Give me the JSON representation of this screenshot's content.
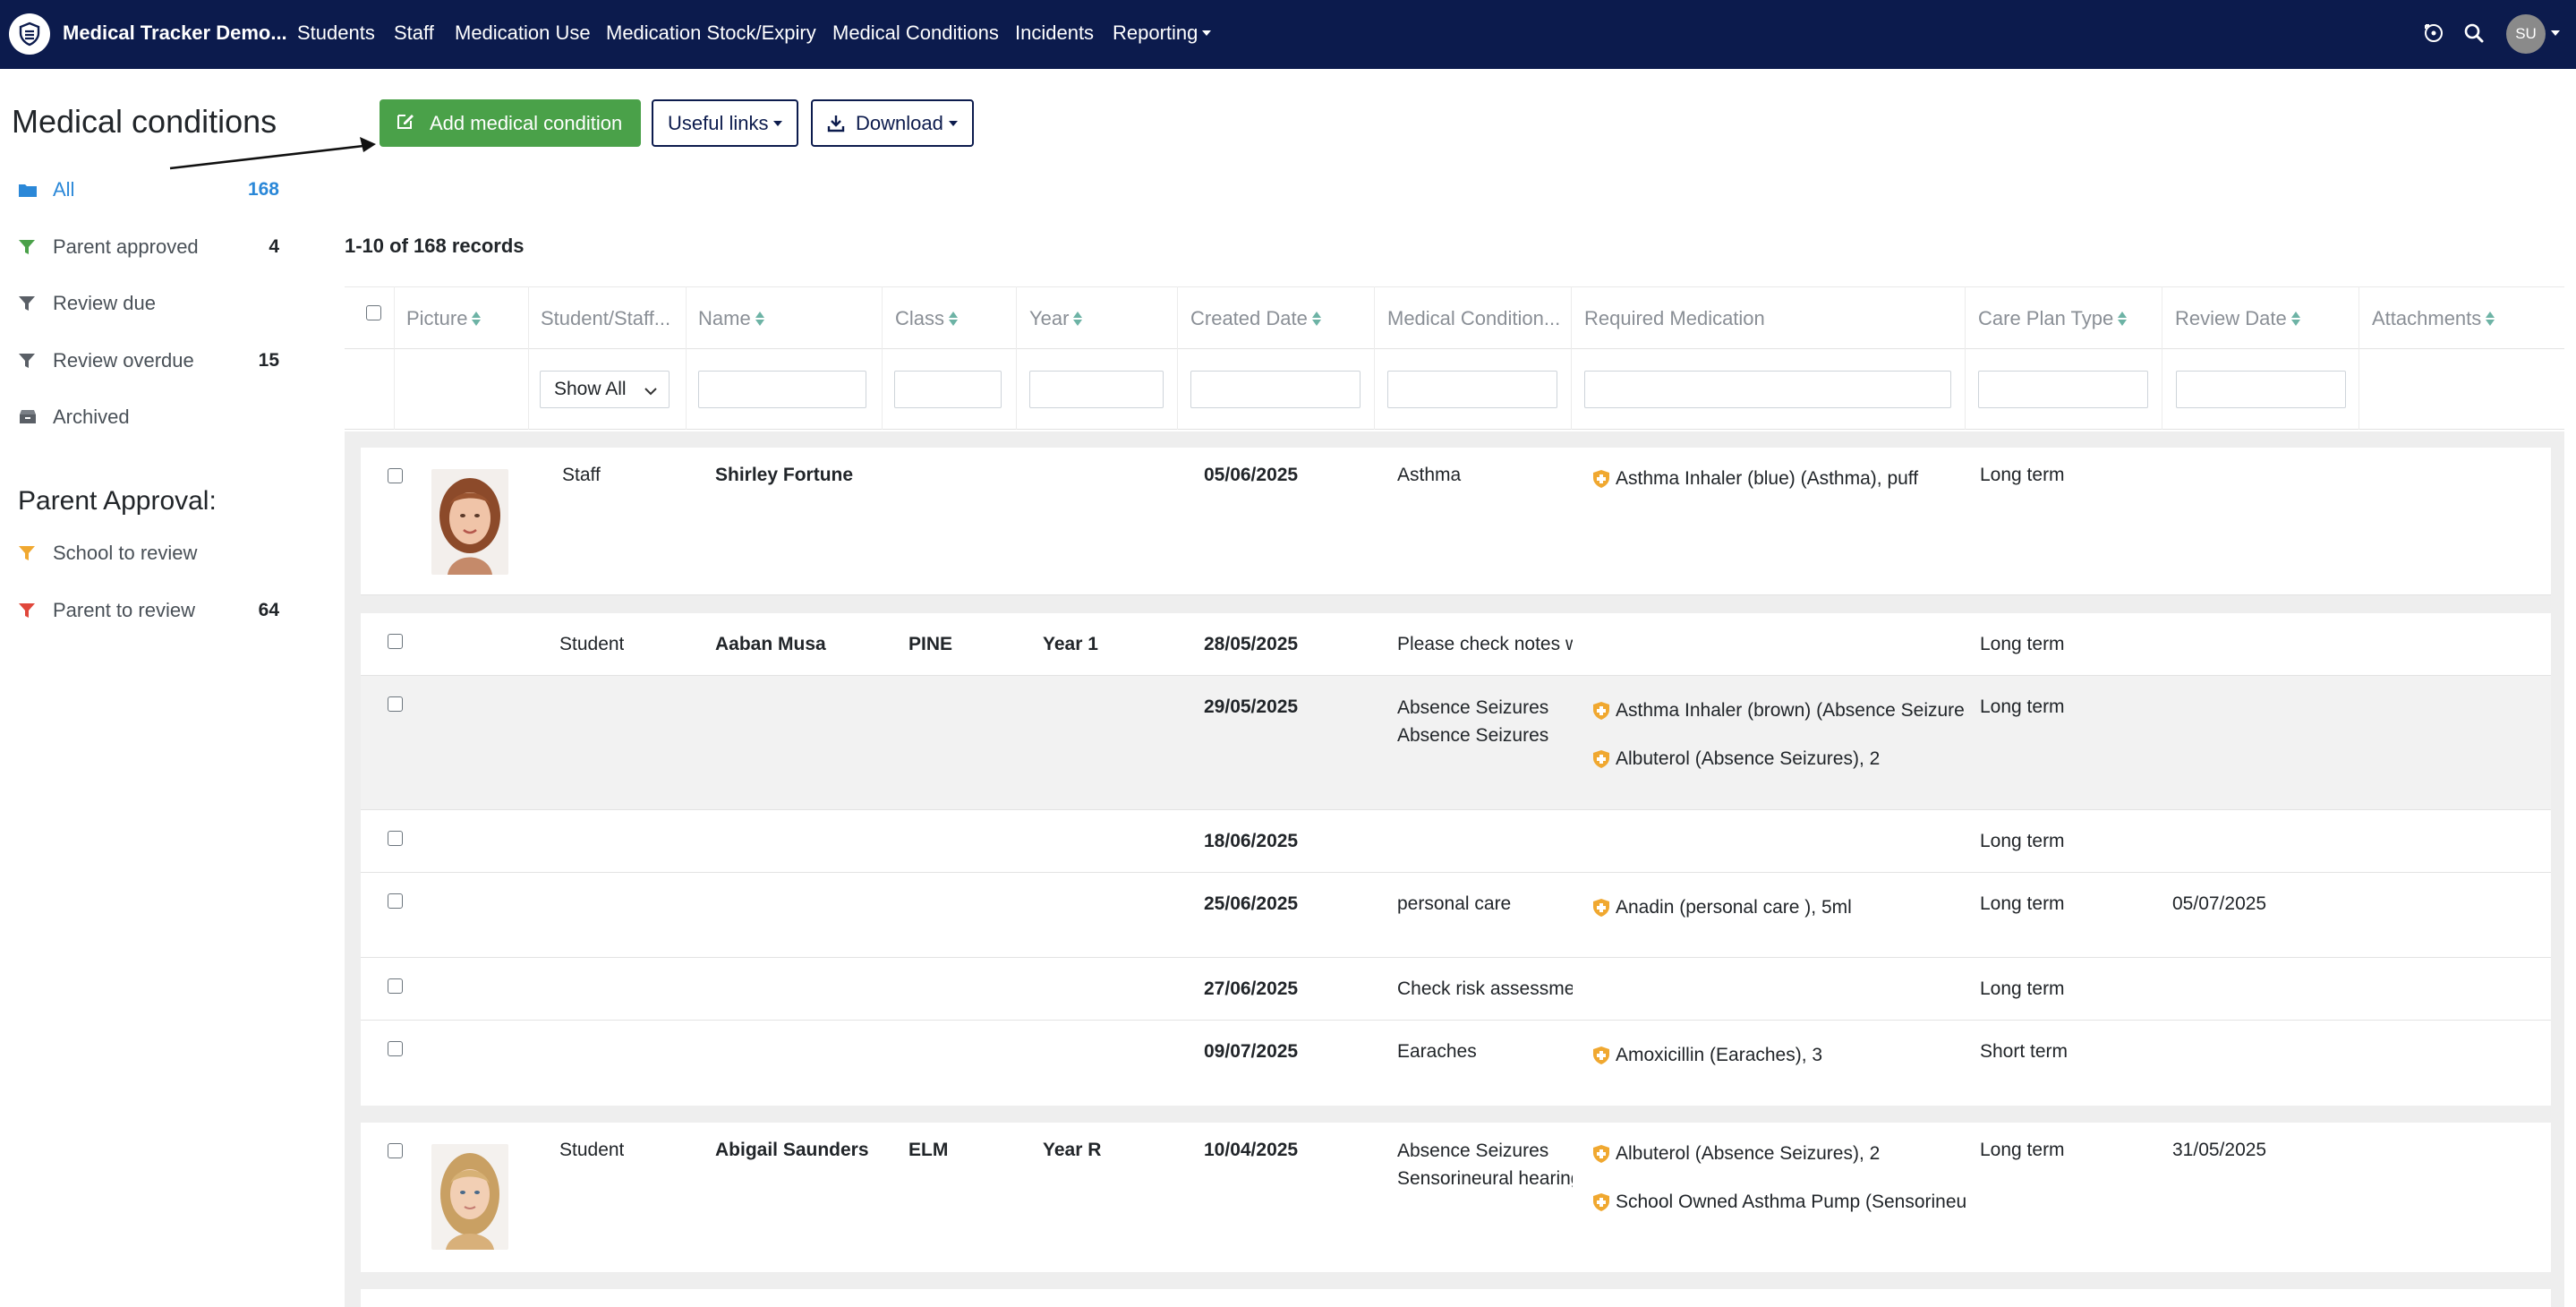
{
  "nav": {
    "brand": "Medical Tracker Demo...",
    "items": [
      "Students",
      "Staff",
      "Medication Use",
      "Medication Stock/Expiry",
      "Medical Conditions",
      "Incidents",
      "Reporting"
    ],
    "avatar_initials": "SU"
  },
  "sidebar": {
    "title": "Medical conditions",
    "filters": [
      {
        "label": "All",
        "count": "168"
      },
      {
        "label": "Parent approved",
        "count": "4"
      },
      {
        "label": "Review due",
        "count": ""
      },
      {
        "label": "Review overdue",
        "count": "15"
      },
      {
        "label": "Archived",
        "count": ""
      }
    ],
    "approval_title": "Parent Approval:",
    "approval_filters": [
      {
        "label": "School to review",
        "count": ""
      },
      {
        "label": "Parent to review",
        "count": "64"
      }
    ]
  },
  "toolbar": {
    "add_label": "Add medical condition",
    "useful_links_label": "Useful links",
    "download_label": "Download"
  },
  "records_text": "1-10 of 168 records",
  "table": {
    "columns": [
      "Picture",
      "Student/Staff...",
      "Name",
      "Class",
      "Year",
      "Created Date",
      "Medical Condition...",
      "Required Medication",
      "Care Plan Type",
      "Review Date",
      "Attachments"
    ],
    "type_filter_value": "Show All",
    "groups": [
      {
        "type": "Staff",
        "name": "Shirley Fortune",
        "class": "",
        "year": "",
        "rows": [
          {
            "created": "05/06/2025",
            "conditions": [
              "Asthma"
            ],
            "medications": [
              "Asthma Inhaler (blue) (Asthma), puff"
            ],
            "care_plan": "Long term",
            "review": ""
          }
        ]
      },
      {
        "type": "Student",
        "name": "Aaban Musa",
        "class": "PINE",
        "year": "Year 1",
        "rows": [
          {
            "created": "28/05/2025",
            "conditions": [
              "Please check notes w"
            ],
            "medications": [],
            "care_plan": "Long term",
            "review": ""
          },
          {
            "created": "29/05/2025",
            "conditions": [
              "Absence Seizures",
              "Absence Seizures"
            ],
            "medications": [
              "Asthma Inhaler (brown) (Absence Seizure",
              "Albuterol (Absence Seizures), 2"
            ],
            "care_plan": "Long term",
            "review": ""
          },
          {
            "created": "18/06/2025",
            "conditions": [],
            "medications": [],
            "care_plan": "Long term",
            "review": ""
          },
          {
            "created": "25/06/2025",
            "conditions": [
              "personal care"
            ],
            "medications": [
              "Anadin (personal care ), 5ml"
            ],
            "care_plan": "Long term",
            "review": "05/07/2025"
          },
          {
            "created": "27/06/2025",
            "conditions": [
              "Check risk assessme"
            ],
            "medications": [],
            "care_plan": "Long term",
            "review": ""
          },
          {
            "created": "09/07/2025",
            "conditions": [
              "Earaches"
            ],
            "medications": [
              "Amoxicillin (Earaches), 3"
            ],
            "care_plan": "Short term",
            "review": ""
          }
        ]
      },
      {
        "type": "Student",
        "name": "Abigail Saunders",
        "class": "ELM",
        "year": "Year R",
        "rows": [
          {
            "created": "10/04/2025",
            "conditions": [
              "Absence Seizures",
              "Sensorineural hearing"
            ],
            "medications": [
              "Albuterol (Absence Seizures), 2",
              "School Owned Asthma Pump (Sensorineu"
            ],
            "care_plan": "Long term",
            "review": "31/05/2025"
          }
        ]
      }
    ]
  },
  "colors": {
    "navbar": "#0c1b4d",
    "add_button": "#4aa149",
    "active_filter": "#2b88d8",
    "med_shield": "#f0a830"
  }
}
